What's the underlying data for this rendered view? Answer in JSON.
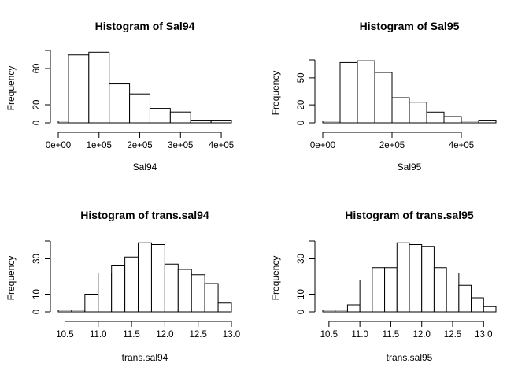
{
  "chart_data": [
    {
      "type": "bar",
      "title": "Histogram of Sal94",
      "xlabel": "Sal94",
      "ylabel": "Frequency",
      "bin_edges": [
        0,
        25000,
        75000,
        125000,
        175000,
        225000,
        275000,
        325000,
        375000,
        425000
      ],
      "counts": [
        2,
        75,
        78,
        43,
        32,
        16,
        12,
        3,
        3
      ],
      "x_ticks": [
        0,
        100000,
        200000,
        300000,
        400000
      ],
      "x_tick_labels": [
        "0e+00",
        "1e+05",
        "2e+05",
        "3e+05",
        "4e+05"
      ],
      "y_ticks": [
        0,
        20,
        60
      ],
      "y_tick_labels": [
        "0",
        "20",
        "60"
      ],
      "xlim": [
        0,
        425000
      ],
      "ylim": [
        0,
        80
      ]
    },
    {
      "type": "bar",
      "title": "Histogram of Sal95",
      "xlabel": "Sal95",
      "ylabel": "Frequency",
      "bin_edges": [
        0,
        50000,
        100000,
        150000,
        200000,
        250000,
        300000,
        350000,
        400000,
        450000,
        500000
      ],
      "counts": [
        2,
        67,
        69,
        56,
        28,
        23,
        12,
        7,
        2,
        3
      ],
      "x_ticks": [
        0,
        200000,
        400000
      ],
      "x_tick_labels": [
        "0e+00",
        "2e+05",
        "4e+05"
      ],
      "y_ticks": [
        0,
        20,
        50
      ],
      "y_tick_labels": [
        "0",
        "20",
        "50"
      ],
      "xlim": [
        0,
        500000
      ],
      "ylim": [
        0,
        70
      ]
    },
    {
      "type": "bar",
      "title": "Histogram of trans.sal94",
      "xlabel": "trans.sal94",
      "ylabel": "Frequency",
      "bin_edges": [
        10.4,
        10.6,
        10.8,
        11.0,
        11.2,
        11.4,
        11.6,
        11.8,
        12.0,
        12.2,
        12.4,
        12.6,
        12.8,
        13.0
      ],
      "counts": [
        1,
        1,
        10,
        22,
        26,
        31,
        39,
        38,
        27,
        24,
        21,
        16,
        5
      ],
      "x_ticks": [
        10.5,
        11.0,
        11.5,
        12.0,
        12.5,
        13.0
      ],
      "x_tick_labels": [
        "10.5",
        "11.0",
        "11.5",
        "12.0",
        "12.5",
        "13.0"
      ],
      "y_ticks": [
        0,
        10,
        30
      ],
      "y_tick_labels": [
        "0",
        "10",
        "30"
      ],
      "xlim": [
        10.4,
        13.0
      ],
      "ylim": [
        0,
        40
      ]
    },
    {
      "type": "bar",
      "title": "Histogram of trans.sal95",
      "xlabel": "trans.sal95",
      "ylabel": "Frequency",
      "bin_edges": [
        10.4,
        10.6,
        10.8,
        11.0,
        11.2,
        11.4,
        11.6,
        11.8,
        12.0,
        12.2,
        12.4,
        12.6,
        12.8,
        13.0,
        13.2
      ],
      "counts": [
        1,
        1,
        4,
        18,
        25,
        25,
        39,
        38,
        37,
        25,
        22,
        15,
        8,
        3
      ],
      "x_ticks": [
        10.5,
        11.0,
        11.5,
        12.0,
        12.5,
        13.0
      ],
      "x_tick_labels": [
        "10.5",
        "11.0",
        "11.5",
        "12.0",
        "12.5",
        "13.0"
      ],
      "y_ticks": [
        0,
        10,
        30
      ],
      "y_tick_labels": [
        "0",
        "10",
        "30"
      ],
      "xlim": [
        10.4,
        13.2
      ],
      "ylim": [
        0,
        40
      ]
    }
  ]
}
